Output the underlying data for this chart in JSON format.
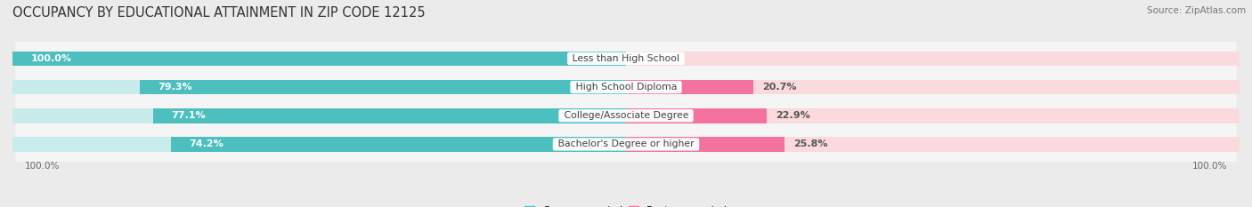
{
  "title": "OCCUPANCY BY EDUCATIONAL ATTAINMENT IN ZIP CODE 12125",
  "source": "Source: ZipAtlas.com",
  "categories": [
    "Less than High School",
    "High School Diploma",
    "College/Associate Degree",
    "Bachelor's Degree or higher"
  ],
  "owner_pct": [
    100.0,
    79.3,
    77.1,
    74.2
  ],
  "renter_pct": [
    0.0,
    20.7,
    22.9,
    25.8
  ],
  "owner_color": "#4DBFBF",
  "renter_color": "#F472A0",
  "owner_light": "#C8ECEC",
  "renter_light": "#FADADD",
  "bg_color": "#EBEBEB",
  "row_bg_color": "#F5F5F5",
  "row_sep_color": "#DCDCDC",
  "title_fontsize": 10.5,
  "source_fontsize": 7.5,
  "label_fontsize": 8,
  "cat_fontsize": 7.8,
  "legend_fontsize": 8,
  "axis_label_fontsize": 7.5,
  "bar_height": 0.52,
  "total_width": 100
}
